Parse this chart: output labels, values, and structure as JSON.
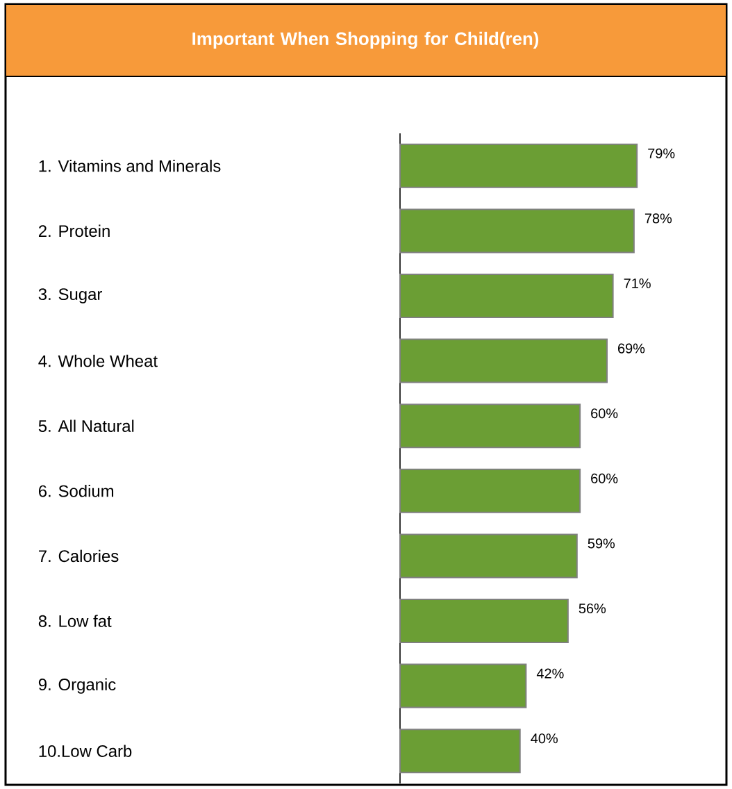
{
  "chart_data": {
    "type": "bar",
    "orientation": "horizontal",
    "title": "Important When Shopping for Child(ren)",
    "color": "#6b9e34",
    "categories": [
      "1. Vitamins and Minerals",
      "2. Protein",
      "3. Sugar",
      "4. Whole Wheat",
      "5. All Natural",
      "6. Sodium",
      "7. Calories",
      "8. Low fat",
      "9. Organic",
      "10.Low Carb"
    ],
    "values": [
      79,
      78,
      71,
      69,
      60,
      60,
      59,
      56,
      42,
      40
    ],
    "value_labels": [
      "79%",
      "78%",
      "71%",
      "69%",
      "60%",
      "60%",
      "59%",
      "56%",
      "42%",
      "40%"
    ]
  }
}
